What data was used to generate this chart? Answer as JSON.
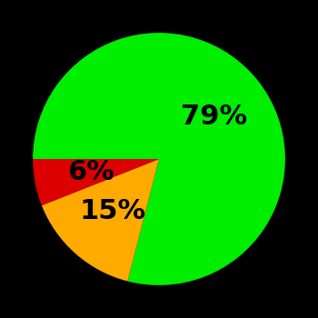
{
  "slices": [
    79,
    15,
    6
  ],
  "colors": [
    "#00ee00",
    "#ffaa00",
    "#dd0000"
  ],
  "labels": [
    "79%",
    "15%",
    "6%"
  ],
  "background_color": "#000000",
  "startangle": 180,
  "label_fontsize": 22,
  "label_color": "#000000",
  "label_radii": [
    0.55,
    0.55,
    0.55
  ]
}
